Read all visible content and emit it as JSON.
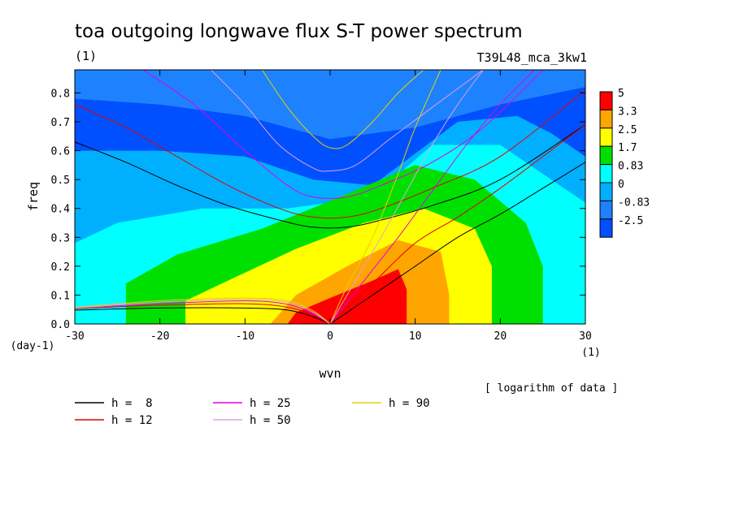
{
  "chart_data": {
    "type": "heatmap",
    "title": "toa outgoing longwave flux S-T power spectrum",
    "units": "(1)",
    "run_id": "T39L48_mca_3kw1",
    "xlabel": "wvn",
    "ylabel": "freq",
    "x_unit": "(1)",
    "y_unit": "(day-1)",
    "xlim": [
      -30,
      30
    ],
    "ylim": [
      0,
      0.88
    ],
    "xticks": [
      "-30",
      "-20",
      "-10",
      "0",
      "10",
      "20",
      "30"
    ],
    "yticks": [
      "0.0",
      "0.1",
      "0.2",
      "0.3",
      "0.4",
      "0.5",
      "0.6",
      "0.7",
      "0.8"
    ],
    "note": "[ logarithm of data ]",
    "colorbar": {
      "labels": [
        "5",
        "3.3",
        "2.5",
        "1.7",
        "0.83",
        "0",
        "-0.83",
        "-2.5"
      ],
      "colors": [
        "#ff0000",
        "#ffa500",
        "#ffff00",
        "#00e000",
        "#00ffff",
        "#00b0ff",
        "#1e82ff",
        "#0050ff"
      ]
    },
    "contour_regions": [
      {
        "level": "-0.83",
        "color": "#1e82ff",
        "points": [
          [
            -30,
            0.88
          ],
          [
            -30,
            0.78
          ],
          [
            -20,
            0.76
          ],
          [
            -10,
            0.72
          ],
          [
            0,
            0.64
          ],
          [
            10,
            0.68
          ],
          [
            20,
            0.76
          ],
          [
            30,
            0.82
          ],
          [
            30,
            0.88
          ]
        ]
      },
      {
        "level": "0",
        "color": "#00b0ff",
        "points": [
          [
            -30,
            0.6
          ],
          [
            -20,
            0.6
          ],
          [
            -10,
            0.58
          ],
          [
            -2,
            0.5
          ],
          [
            5,
            0.48
          ],
          [
            15,
            0.7
          ],
          [
            22,
            0.72
          ],
          [
            26,
            0.66
          ],
          [
            30,
            0.58
          ],
          [
            30,
            0.0
          ],
          [
            -30,
            0.0
          ]
        ]
      },
      {
        "level": "0.83",
        "color": "#00ffff",
        "points": [
          [
            -30,
            0.28
          ],
          [
            -25,
            0.35
          ],
          [
            -15,
            0.4
          ],
          [
            -5,
            0.4
          ],
          [
            5,
            0.44
          ],
          [
            12,
            0.62
          ],
          [
            20,
            0.62
          ],
          [
            26,
            0.5
          ],
          [
            30,
            0.42
          ],
          [
            30,
            0.0
          ],
          [
            -30,
            0.0
          ]
        ]
      },
      {
        "level": "1.7",
        "color": "#00e000",
        "points": [
          [
            -24,
            0.0
          ],
          [
            -24,
            0.14
          ],
          [
            -18,
            0.24
          ],
          [
            -8,
            0.33
          ],
          [
            2,
            0.45
          ],
          [
            10,
            0.55
          ],
          [
            17,
            0.5
          ],
          [
            23,
            0.35
          ],
          [
            25,
            0.2
          ],
          [
            25,
            0.0
          ]
        ]
      },
      {
        "level": "2.5",
        "color": "#ffff00",
        "points": [
          [
            -17,
            0.0
          ],
          [
            -17,
            0.08
          ],
          [
            -12,
            0.15
          ],
          [
            -4,
            0.26
          ],
          [
            4,
            0.35
          ],
          [
            11,
            0.4
          ],
          [
            17,
            0.33
          ],
          [
            19,
            0.2
          ],
          [
            19,
            0.0
          ]
        ]
      },
      {
        "level": "3.3",
        "color": "#ffa500",
        "points": [
          [
            -7,
            0.0
          ],
          [
            -4,
            0.1
          ],
          [
            2,
            0.2
          ],
          [
            8,
            0.29
          ],
          [
            13,
            0.25
          ],
          [
            14,
            0.1
          ],
          [
            14,
            0.0
          ]
        ]
      },
      {
        "level": "5",
        "color": "#ff0000",
        "points": [
          [
            -5,
            0.0
          ],
          [
            -4,
            0.04
          ],
          [
            0,
            0.09
          ],
          [
            5,
            0.15
          ],
          [
            8,
            0.19
          ],
          [
            9,
            0.12
          ],
          [
            9,
            0.0
          ]
        ]
      }
    ],
    "legend": [
      {
        "label": "h =  8",
        "color": "#000000"
      },
      {
        "label": "h = 12",
        "color": "#e00000"
      },
      {
        "label": "h = 25",
        "color": "#e000e0"
      },
      {
        "label": "h = 50",
        "color": "#e0a0e0"
      },
      {
        "label": "h = 90",
        "color": "#e8d000"
      }
    ],
    "series": [
      {
        "name": "h =  8",
        "color": "#000000",
        "curves": [
          [
            [
              -30,
              0.63
            ],
            [
              -24,
              0.56
            ],
            [
              -18,
              0.48
            ],
            [
              -12,
              0.41
            ],
            [
              -6,
              0.36
            ],
            [
              -2,
              0.335
            ],
            [
              2,
              0.335
            ],
            [
              6,
              0.36
            ],
            [
              12,
              0.41
            ],
            [
              20,
              0.5
            ],
            [
              30,
              0.69
            ]
          ],
          [
            [
              -30,
              0.048
            ],
            [
              -20,
              0.055
            ],
            [
              -10,
              0.055
            ],
            [
              -5,
              0.048
            ],
            [
              -2,
              0.025
            ],
            [
              0,
              0.0
            ]
          ],
          [
            [
              0,
              0.0
            ],
            [
              5,
              0.1
            ],
            [
              10,
              0.2
            ],
            [
              15,
              0.3
            ],
            [
              20,
              0.38
            ],
            [
              25,
              0.47
            ],
            [
              30,
              0.56
            ]
          ]
        ]
      },
      {
        "name": "h = 12",
        "color": "#e00000",
        "curves": [
          [
            [
              -30,
              0.76
            ],
            [
              -24,
              0.68
            ],
            [
              -18,
              0.58
            ],
            [
              -12,
              0.48
            ],
            [
              -6,
              0.4
            ],
            [
              -2,
              0.37
            ],
            [
              2,
              0.37
            ],
            [
              6,
              0.4
            ],
            [
              12,
              0.47
            ],
            [
              20,
              0.58
            ],
            [
              30,
              0.81
            ]
          ],
          [
            [
              -30,
              0.053
            ],
            [
              -20,
              0.065
            ],
            [
              -10,
              0.07
            ],
            [
              -5,
              0.058
            ],
            [
              -2,
              0.03
            ],
            [
              0,
              0.0
            ]
          ],
          [
            [
              0,
              0.0
            ],
            [
              5,
              0.14
            ],
            [
              10,
              0.28
            ],
            [
              15,
              0.37
            ],
            [
              20,
              0.47
            ],
            [
              25,
              0.58
            ],
            [
              30,
              0.69
            ]
          ]
        ]
      },
      {
        "name": "h = 25",
        "color": "#e000e0",
        "curves": [
          [
            [
              -22,
              0.88
            ],
            [
              -16,
              0.76
            ],
            [
              -10,
              0.6
            ],
            [
              -5,
              0.48
            ],
            [
              -2,
              0.44
            ],
            [
              2,
              0.44
            ],
            [
              6,
              0.48
            ],
            [
              12,
              0.56
            ],
            [
              18,
              0.68
            ],
            [
              25,
              0.88
            ]
          ],
          [
            [
              -30,
              0.055
            ],
            [
              -20,
              0.07
            ],
            [
              -10,
              0.08
            ],
            [
              -5,
              0.068
            ],
            [
              -2,
              0.035
            ],
            [
              0,
              0.0
            ]
          ],
          [
            [
              0,
              0.0
            ],
            [
              4,
              0.15
            ],
            [
              8,
              0.3
            ],
            [
              12,
              0.46
            ],
            [
              16,
              0.62
            ],
            [
              20,
              0.76
            ],
            [
              24,
              0.88
            ]
          ]
        ]
      },
      {
        "name": "h = 50",
        "color": "#e0a0e0",
        "curves": [
          [
            [
              -14,
              0.88
            ],
            [
              -10,
              0.76
            ],
            [
              -6,
              0.62
            ],
            [
              -2,
              0.54
            ],
            [
              0,
              0.53
            ],
            [
              3,
              0.55
            ],
            [
              7,
              0.64
            ],
            [
              12,
              0.75
            ],
            [
              18,
              0.88
            ]
          ],
          [
            [
              -30,
              0.055
            ],
            [
              -20,
              0.075
            ],
            [
              -10,
              0.085
            ],
            [
              -5,
              0.075
            ],
            [
              -2,
              0.04
            ],
            [
              0,
              0.0
            ]
          ],
          [
            [
              0,
              0.0
            ],
            [
              3,
              0.15
            ],
            [
              6,
              0.3
            ],
            [
              9,
              0.46
            ],
            [
              12,
              0.62
            ],
            [
              15,
              0.76
            ],
            [
              18,
              0.88
            ]
          ]
        ]
      },
      {
        "name": "h = 90",
        "color": "#e8d000",
        "curves": [
          [
            [
              -8,
              0.88
            ],
            [
              -5,
              0.75
            ],
            [
              -2,
              0.65
            ],
            [
              0,
              0.61
            ],
            [
              2,
              0.62
            ],
            [
              5,
              0.7
            ],
            [
              8,
              0.8
            ],
            [
              11,
              0.88
            ]
          ],
          [
            [
              -30,
              0.058
            ],
            [
              -20,
              0.08
            ],
            [
              -10,
              0.09
            ],
            [
              -5,
              0.08
            ],
            [
              -2,
              0.045
            ],
            [
              0,
              0.0
            ]
          ],
          [
            [
              0,
              0.0
            ],
            [
              2,
              0.13
            ],
            [
              5,
              0.3
            ],
            [
              8,
              0.52
            ],
            [
              10,
              0.68
            ],
            [
              13,
              0.88
            ]
          ]
        ]
      }
    ]
  }
}
